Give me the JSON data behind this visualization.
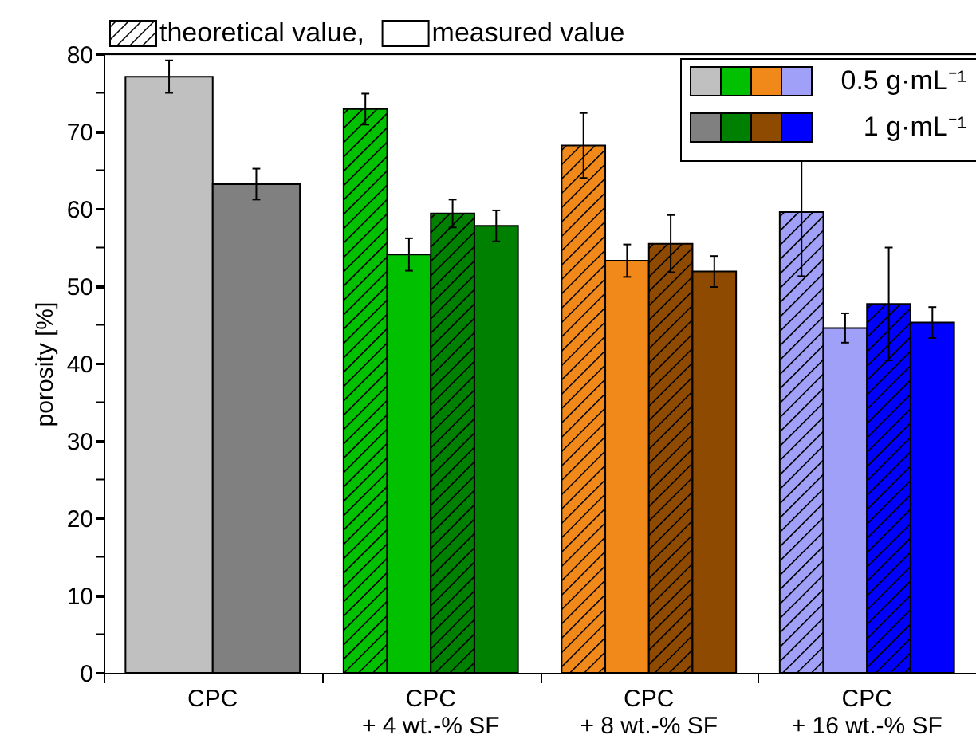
{
  "chart_data": {
    "type": "bar",
    "ylabel": "porosity [%]",
    "categories": [
      "CPC",
      "CPC\n+ 4 wt.-% SF",
      "CPC\n+ 8 wt.-% SF",
      "CPC\n+ 16 wt.-% SF"
    ],
    "series": [
      {
        "name": "theoretical value,",
        "colors": [
          "#c0c0c0",
          "#00c000",
          "#f0891a",
          "#a0a0f8"
        ],
        "values": [
          null,
          72.9,
          68.2,
          59.6
        ],
        "errors": [
          null,
          2.0,
          4.2,
          8.3
        ]
      },
      {
        "name": "measured value",
        "colors": [
          "#c0c0c0",
          "#00c000",
          "#f0891a",
          "#a0a0f8"
        ],
        "values": [
          77.1,
          54.1,
          53.3,
          44.6
        ],
        "errors": [
          2.1,
          2.1,
          2.1,
          1.9
        ]
      },
      {
        "colors": [
          "#808080",
          "#008000",
          "#8e4a00",
          "#0000ff"
        ],
        "values": [
          null,
          59.4,
          55.5,
          47.7
        ],
        "errors": [
          null,
          1.8,
          3.7,
          7.3
        ]
      },
      {
        "colors": [
          "#808080",
          "#008000",
          "#8e4a00",
          "#0000ff"
        ],
        "values": [
          63.2,
          57.8,
          51.9,
          45.3
        ],
        "errors": [
          2.0,
          2.0,
          2.0,
          2.0
        ]
      }
    ],
    "annotations": [
      "0.5 g·mL⁻¹",
      "1 g·mL⁻¹"
    ],
    "ylim": [
      0,
      80
    ],
    "yticks": [
      0,
      {
        "value": 5,
        "label": null
      },
      10,
      {
        "value": 15,
        "label": null
      },
      20,
      {
        "value": 25,
        "label": null
      },
      30,
      {
        "value": 35,
        "label": null
      },
      40,
      {
        "value": 45,
        "label": null
      },
      50,
      {
        "value": 55,
        "label": null
      },
      60,
      {
        "value": 65,
        "label": null
      },
      70,
      {
        "value": 75,
        "label": null
      },
      80
    ],
    "legend": "top left",
    "grid": false
  }
}
